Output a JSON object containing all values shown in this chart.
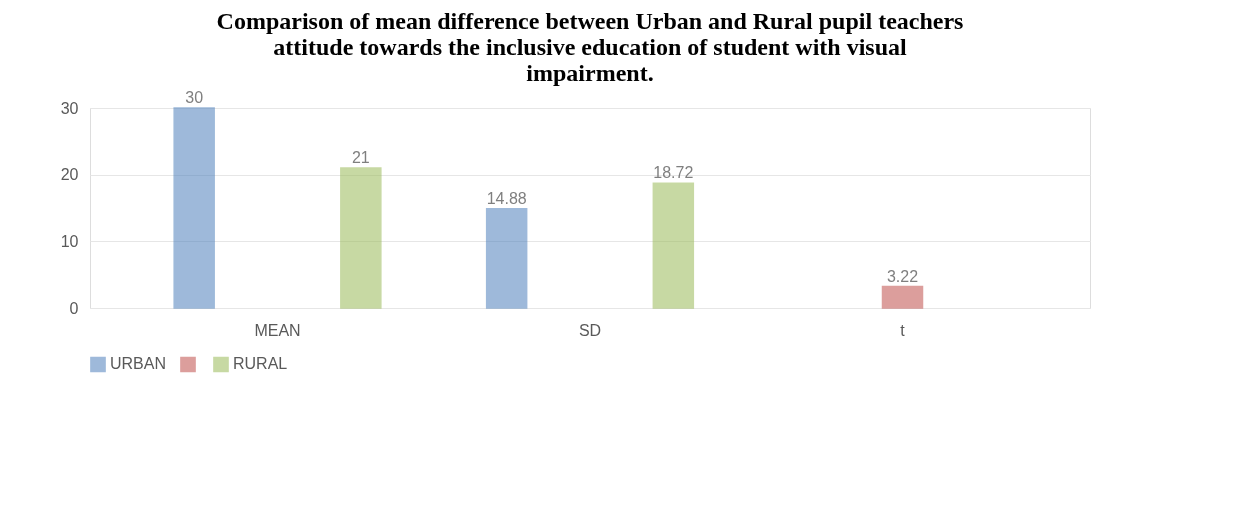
{
  "chart_data": {
    "type": "bar",
    "title": "Comparison of mean difference between Urban and Rural pupil teachers attitude towards the inclusive education of student with visual impairment.",
    "categories": [
      "MEAN",
      "SD",
      "t"
    ],
    "series": [
      {
        "name": "URBAN",
        "color": "#4f81bd",
        "values": [
          30,
          14.88,
          null
        ]
      },
      {
        "name": null,
        "color": "#c0504d",
        "values": [
          null,
          null,
          3.22
        ]
      },
      {
        "name": "RURAL",
        "color": "#9bbb59",
        "values": [
          21,
          18.72,
          null
        ]
      }
    ],
    "ylim": [
      0,
      30
    ],
    "yticks": [
      0,
      10,
      20,
      30
    ],
    "grid": "y",
    "legend": "bottom",
    "data_labels": true
  }
}
